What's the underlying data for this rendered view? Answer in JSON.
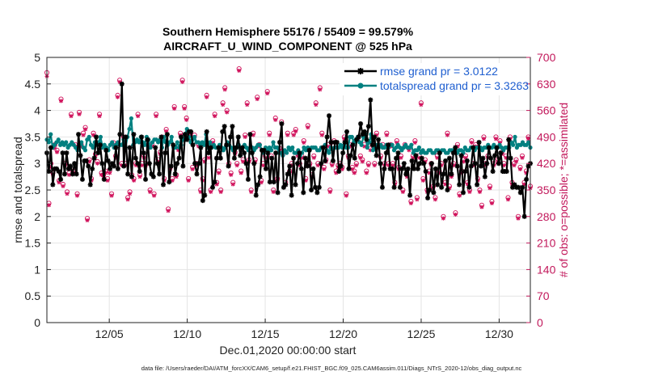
{
  "chart_data": {
    "type": "line",
    "title": "Southern Hemisphere 55176 / 55409 = 99.579%",
    "subtitle": "AIRCRAFT_U_WIND_COMPONENT @ 525 hPa",
    "xlabel": "Dec.01,2020 00:00:00 start",
    "ylabel": "rmse and totalspread",
    "ylabel_right": "# of obs: o=possible; *=assimilated",
    "xlim": [
      1,
      32
    ],
    "ylim": [
      0,
      5
    ],
    "ylim_right": [
      0,
      700
    ],
    "x_ticks": [
      5,
      10,
      15,
      20,
      25,
      30
    ],
    "x_tick_labels": [
      "12/05",
      "12/10",
      "12/15",
      "12/20",
      "12/25",
      "12/30"
    ],
    "y_ticks": [
      0,
      0.5,
      1,
      1.5,
      2,
      2.5,
      3,
      3.5,
      4,
      4.5,
      5
    ],
    "y_tick_labels": [
      "0",
      "0.5",
      "1",
      "1.5",
      "2",
      "2.5",
      "3",
      "3.5",
      "4",
      "4.5",
      "5"
    ],
    "y_ticks_right": [
      0,
      70,
      140,
      210,
      280,
      350,
      420,
      490,
      560,
      630,
      700
    ],
    "y_tick_labels_right": [
      "0",
      "70",
      "140",
      "210",
      "280",
      "350",
      "420",
      "490",
      "560",
      "630",
      "700"
    ],
    "grid": true,
    "legend_position": "top-right",
    "colors": {
      "rmse": "#000000",
      "spread": "#008080",
      "obs": "#d0105a",
      "legend_text": "#1f5fd0"
    },
    "series": [
      {
        "name": "rmse grand pr = 3.0122",
        "values": [
          3.2,
          2.85,
          3.3,
          2.6,
          2.9,
          2.9,
          2.85,
          2.7,
          3.2,
          2.8,
          3.2,
          2.9,
          2.95,
          2.8,
          3.0,
          2.8,
          3.55,
          3.15,
          2.7,
          3.05,
          3.05,
          2.95,
          2.6,
          2.9,
          3.1,
          3.5,
          3.2,
          3.35,
          3.0,
          2.7,
          3.25,
          3.05,
          2.9,
          3.0,
          2.95,
          3.3,
          2.9,
          3.55,
          4.5,
          2.95,
          3.5,
          2.8,
          3.3,
          2.75,
          3.55,
          3.1,
          3.0,
          2.85,
          3.5,
          3.2,
          2.7,
          3.45,
          3.0,
          2.8,
          2.75,
          3.3,
          3.0,
          2.8,
          3.5,
          2.6,
          3.2,
          3.55,
          2.65,
          2.95,
          3.35,
          2.8,
          3.0,
          3.1,
          3.5,
          2.95,
          3.55,
          3.45,
          3.6,
          3.6,
          3.35,
          3.0,
          2.8,
          3.0,
          3.3,
          2.3,
          2.4,
          3.6,
          3.2,
          3.3,
          2.55,
          2.65,
          3.1,
          3.3,
          3.1,
          3.6,
          3.7,
          3.35,
          2.95,
          3.5,
          3.7,
          3.1,
          3.3,
          3.5,
          3.15,
          3.3,
          3.2,
          3.0,
          2.7,
          3.55,
          3.2,
          3.0,
          2.4,
          2.6,
          2.75,
          3.25,
          3.25,
          2.9,
          3.2,
          2.65,
          3.1,
          2.65,
          3.2,
          2.45,
          3.4,
          3.75,
          2.55,
          2.6,
          2.8,
          2.95,
          2.4,
          3.1,
          2.6,
          3.0,
          3.2,
          2.9,
          2.45,
          3.1,
          2.95,
          3.25,
          2.5,
          2.9,
          2.55,
          2.45,
          2.55,
          3.0,
          3.3,
          3.05,
          3.5,
          3.9,
          3.4,
          3.05,
          3.4,
          3.4,
          2.85,
          2.95,
          3.2,
          3.4,
          3.6,
          2.9,
          3.15,
          3.35,
          3.1,
          3.45,
          3.5,
          3.75,
          3.55,
          3.6,
          3.45,
          3.7,
          4.2,
          3.35,
          3.5,
          3.15,
          3.45,
          3.0,
          2.55,
          2.9,
          3.2,
          3.35,
          2.9,
          2.9,
          2.55,
          3.1,
          3.2,
          2.55,
          2.9,
          3.0,
          2.8,
          2.9,
          2.4,
          3.05,
          2.9,
          3.15,
          2.9,
          3.0,
          3.1,
          3.0,
          2.85,
          2.35,
          2.5,
          3.0,
          2.45,
          2.9,
          2.6,
          3.2,
          2.55,
          2.8,
          3.05,
          2.5,
          3.1,
          2.8,
          3.2,
          3.3,
          2.95,
          2.6,
          3.15,
          2.45,
          2.85,
          3.05,
          2.55,
          2.95,
          3.3,
          3.0,
          2.6,
          3.4,
          2.95,
          3.1,
          2.75,
          3.0,
          3.3,
          3.1,
          2.85,
          3.15,
          3.3,
          3.0,
          3.2,
          2.85,
          2.85,
          2.85,
          3.45,
          3.1,
          2.55,
          2.6,
          2.55,
          2.55,
          2.45,
          2.55,
          2.0,
          2.7,
          2.95,
          3.0
        ]
      },
      {
        "name": "totalspread grand pr = 3.3263",
        "values": [
          3.45,
          3.4,
          3.55,
          3.3,
          3.35,
          3.4,
          3.45,
          3.35,
          3.4,
          3.35,
          3.4,
          3.3,
          3.35,
          3.4,
          3.35,
          3.3,
          3.25,
          3.35,
          3.4,
          3.3,
          3.25,
          3.45,
          3.5,
          3.35,
          3.3,
          3.4,
          3.35,
          3.4,
          3.5,
          3.3,
          3.35,
          3.3,
          3.25,
          3.35,
          3.4,
          3.3,
          3.35,
          3.4,
          3.35,
          3.35,
          3.45,
          3.3,
          3.5,
          3.65,
          3.85,
          3.35,
          3.4,
          3.45,
          3.4,
          3.5,
          3.4,
          3.35,
          3.5,
          3.45,
          3.3,
          3.4,
          3.45,
          3.45,
          3.4,
          3.45,
          3.3,
          3.5,
          3.4,
          3.35,
          3.4,
          3.5,
          3.3,
          3.3,
          3.4,
          3.3,
          3.35,
          3.45,
          3.55,
          3.65,
          3.5,
          3.4,
          3.45,
          3.5,
          3.4,
          3.4,
          3.35,
          3.4,
          3.35,
          3.55,
          3.3,
          3.4,
          3.3,
          3.35,
          3.3,
          3.3,
          3.35,
          3.3,
          3.25,
          3.3,
          3.4,
          3.35,
          3.3,
          3.25,
          3.3,
          3.3,
          3.35,
          3.3,
          3.3,
          3.35,
          3.3,
          3.25,
          3.3,
          3.3,
          3.25,
          3.3,
          3.35,
          3.35,
          3.25,
          3.2,
          3.3,
          3.25,
          3.3,
          3.25,
          3.4,
          3.3,
          3.3,
          3.2,
          3.2,
          3.15,
          3.25,
          3.2,
          3.3,
          3.25,
          3.3,
          3.2,
          3.2,
          3.25,
          3.15,
          3.2,
          3.3,
          3.25,
          3.3,
          3.25,
          3.3,
          3.3,
          3.3,
          3.25,
          3.25,
          3.3,
          3.3,
          3.35,
          3.25,
          3.2,
          3.3,
          3.25,
          3.3,
          3.3,
          3.3,
          3.35,
          3.3,
          3.35,
          3.3,
          3.3,
          3.5,
          3.5,
          3.4,
          3.45,
          3.5,
          3.4,
          3.35,
          3.5,
          3.55,
          3.3,
          3.4,
          3.55,
          3.25,
          3.3,
          3.35,
          3.3,
          3.35,
          3.3,
          3.3,
          3.35,
          3.3,
          3.35,
          3.35,
          3.25,
          3.3,
          3.35,
          3.3,
          3.25,
          3.3,
          3.35,
          3.3,
          3.3,
          3.35,
          3.2,
          3.25,
          3.25,
          3.3,
          3.2,
          3.25,
          3.2,
          3.2,
          3.25,
          3.25,
          3.2,
          3.2,
          3.25,
          3.25,
          3.2,
          3.25,
          3.25,
          3.2,
          3.2,
          3.25,
          3.25,
          3.25,
          3.3,
          3.2,
          3.25,
          3.25,
          3.2,
          3.3,
          3.25,
          3.25,
          3.3,
          3.3,
          3.25,
          3.3,
          3.3,
          3.3,
          3.25,
          3.3,
          3.3,
          3.35,
          3.3,
          3.3,
          3.35,
          3.3,
          3.3,
          3.35,
          3.3,
          3.25,
          3.3,
          3.3,
          3.3,
          3.4,
          3.35,
          3.5,
          3.3,
          3.35,
          3.35,
          3.4,
          3.35,
          3.35,
          3.4,
          3.3
        ]
      },
      {
        "name": "# of obs possible",
        "values": [
          660,
          315,
          420,
          395,
          470,
          455,
          375,
          590,
          365,
          420,
          345,
          395,
          550,
          400,
          470,
          340,
          555,
          470,
          500,
          515,
          275,
          430,
          380,
          500,
          445,
          425,
          550,
          395,
          390,
          400,
          380,
          400,
          340,
          475,
          440,
          600,
          640,
          420,
          490,
          420,
          330,
          345,
          390,
          380,
          420,
          550,
          390,
          420,
          440,
          420,
          470,
          350,
          470,
          340,
          550,
          430,
          450,
          490,
          380,
          510,
          300,
          410,
          380,
          570,
          390,
          460,
          500,
          640,
          570,
          540,
          380,
          500,
          410,
          495,
          420,
          470,
          350,
          380,
          430,
          600,
          440,
          350,
          480,
          550,
          370,
          400,
          350,
          580,
          620,
          560,
          420,
          395,
          370,
          450,
          420,
          670,
          400,
          430,
          495,
          580,
          430,
          350,
          500,
          430,
          595,
          470,
          375,
          420,
          440,
          610,
          500,
          440,
          350,
          540,
          380,
          460,
          530,
          450,
          370,
          500,
          400,
          420,
          500,
          510,
          445,
          420,
          440,
          480,
          380,
          520,
          420,
          390,
          440,
          580,
          420,
          620,
          500,
          410,
          430,
          470,
          350,
          420,
          480,
          400,
          415,
          420,
          410,
          490,
          340,
          440,
          470,
          410,
          400,
          420,
          490,
          440,
          430,
          470,
          400,
          420,
          460,
          470,
          420,
          500,
          470,
          440,
          470,
          420,
          500,
          420,
          470,
          420,
          370,
          480,
          410,
          440,
          350,
          470,
          390,
          460,
          320,
          440,
          480,
          330,
          440,
          580,
          380,
          430,
          350,
          400,
          420,
          360,
          330,
          440,
          400,
          420,
          280,
          370,
          500,
          360,
          390,
          420,
          290,
          470,
          340,
          400,
          430,
          440,
          370,
          350,
          480,
          420,
          470,
          380,
          350,
          310,
          490,
          420,
          440,
          360,
          320,
          420,
          490,
          430,
          480,
          450,
          420,
          440,
          330,
          490,
          370,
          420,
          430,
          280,
          410,
          440,
          370,
          400,
          490,
          360
        ]
      },
      {
        "name": "# of obs assimilated",
        "values": [
          650,
          310,
          410,
          390,
          460,
          450,
          370,
          585,
          360,
          415,
          340,
          390,
          545,
          395,
          465,
          335,
          550,
          465,
          495,
          510,
          270,
          425,
          375,
          495,
          440,
          420,
          545,
          390,
          385,
          395,
          375,
          395,
          335,
          470,
          435,
          595,
          635,
          415,
          485,
          415,
          325,
          340,
          385,
          375,
          415,
          545,
          385,
          415,
          435,
          415,
          465,
          345,
          465,
          335,
          545,
          425,
          445,
          485,
          375,
          505,
          295,
          405,
          375,
          565,
          385,
          455,
          495,
          635,
          565,
          535,
          375,
          495,
          405,
          490,
          415,
          465,
          345,
          375,
          425,
          595,
          435,
          345,
          475,
          545,
          365,
          395,
          345,
          575,
          615,
          555,
          415,
          390,
          365,
          445,
          415,
          665,
          395,
          425,
          490,
          575,
          425,
          345,
          495,
          425,
          590,
          465,
          370,
          415,
          435,
          605,
          495,
          435,
          345,
          535,
          375,
          455,
          525,
          445,
          365,
          495,
          395,
          415,
          495,
          505,
          440,
          415,
          435,
          475,
          375,
          515,
          415,
          385,
          435,
          575,
          415,
          615,
          495,
          405,
          425,
          465,
          345,
          415,
          475,
          395,
          410,
          415,
          405,
          485,
          335,
          435,
          465,
          405,
          395,
          415,
          485,
          435,
          425,
          465,
          395,
          415,
          455,
          465,
          415,
          495,
          465,
          435,
          465,
          415,
          495,
          415,
          465,
          415,
          365,
          475,
          405,
          435,
          345,
          465,
          385,
          455,
          315,
          435,
          475,
          325,
          435,
          575,
          375,
          425,
          345,
          395,
          415,
          355,
          325,
          435,
          395,
          415,
          275,
          365,
          495,
          355,
          385,
          415,
          285,
          465,
          335,
          395,
          425,
          435,
          365,
          345,
          475,
          415,
          465,
          375,
          345,
          305,
          485,
          415,
          435,
          355,
          315,
          415,
          485,
          425,
          475,
          445,
          415,
          435,
          325,
          485,
          365,
          415,
          425,
          275,
          405,
          435,
          365,
          395,
          485,
          355
        ]
      }
    ]
  },
  "footer": {
    "text": "data file: /Users/raeder/DAI/ATM_forcXX/CAM6_setup/f.e21.FHIST_BGC.f09_025.CAM6assim.011/Diags_NTrS_2020-12/obs_diag_output.nc"
  }
}
